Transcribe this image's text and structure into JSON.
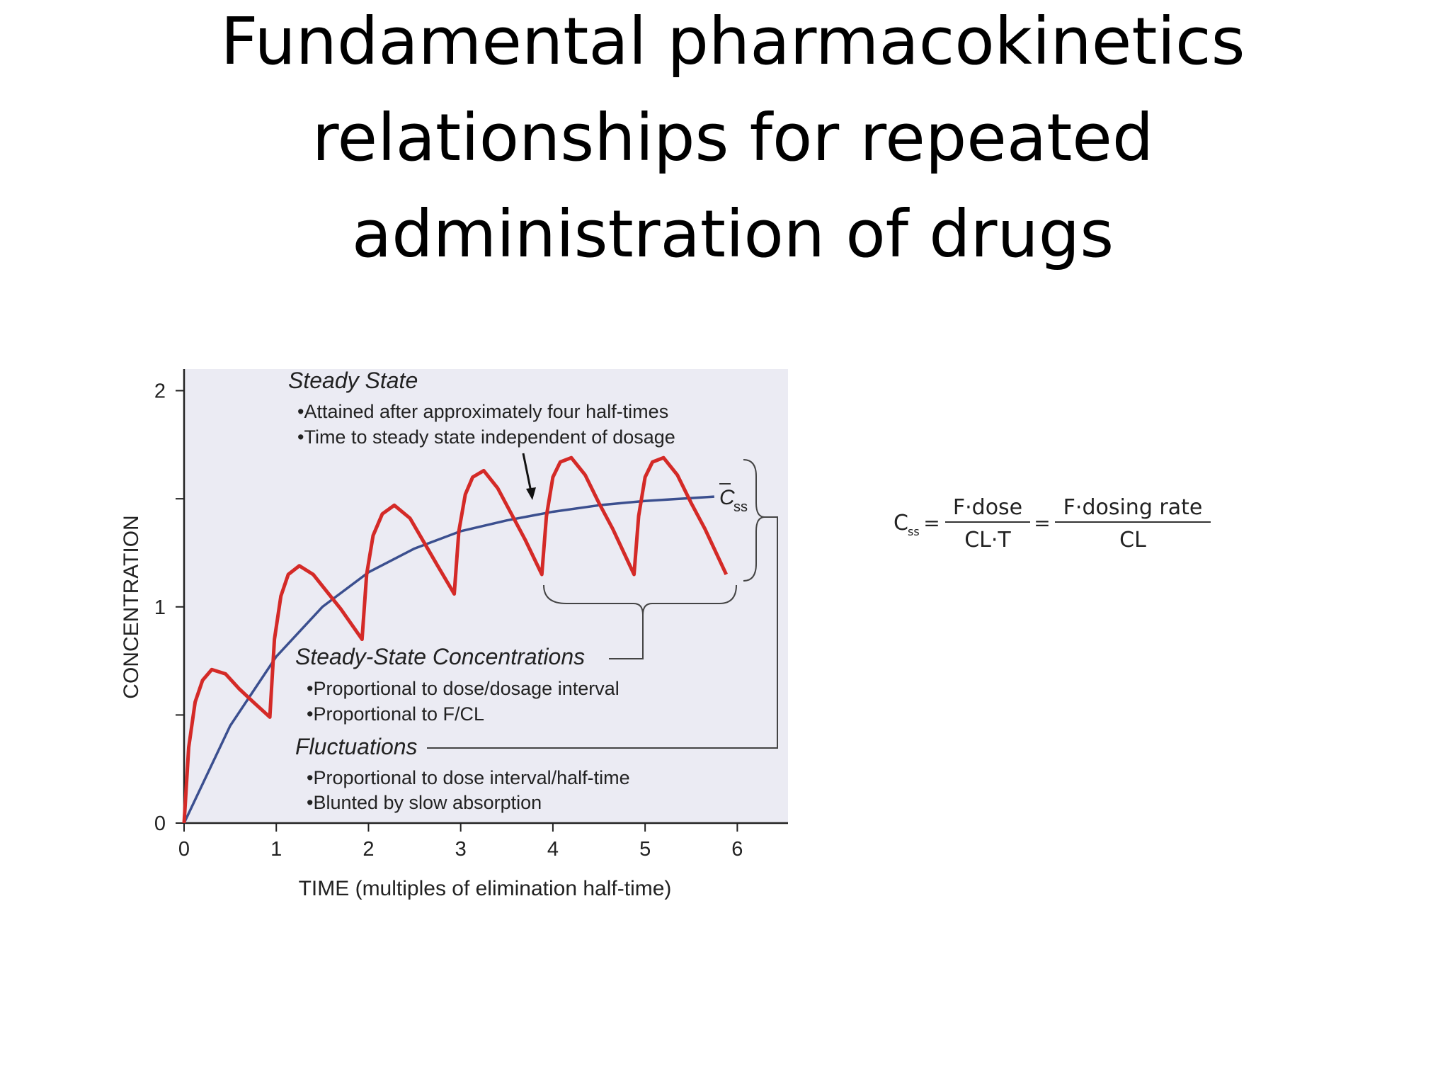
{
  "slide": {
    "title_lines": [
      "Fundamental pharmacokinetics",
      "relationships for repeated",
      "administration of drugs"
    ]
  },
  "chart_data": {
    "type": "line",
    "xlabel": "TIME (multiples of elimination half-time)",
    "ylabel": "CONCENTRATION",
    "xlim": [
      0,
      6.55
    ],
    "ylim": [
      0,
      2.1
    ],
    "xticks": [
      0,
      1,
      2,
      3,
      4,
      5,
      6
    ],
    "yticks": [
      0,
      1,
      2
    ],
    "y_minor_ticks": [
      0.5,
      1.5
    ],
    "series": [
      {
        "color": "#d42a27",
        "x": [
          0,
          0.05,
          0.12,
          0.2,
          0.3,
          0.45,
          0.6,
          0.75,
          0.93,
          0.98,
          1.05,
          1.13,
          1.25,
          1.4,
          1.55,
          1.7,
          1.93,
          1.98,
          2.05,
          2.15,
          2.28,
          2.45,
          2.6,
          2.75,
          2.93,
          2.98,
          3.05,
          3.13,
          3.25,
          3.4,
          3.55,
          3.7,
          3.88,
          3.93,
          4.0,
          4.08,
          4.2,
          4.35,
          4.5,
          4.65,
          4.88,
          4.93,
          5.0,
          5.08,
          5.2,
          5.35,
          5.5,
          5.65,
          5.88
        ],
        "values": [
          0,
          0.35,
          0.56,
          0.66,
          0.71,
          0.69,
          0.62,
          0.56,
          0.49,
          0.85,
          1.05,
          1.15,
          1.19,
          1.15,
          1.07,
          0.99,
          0.85,
          1.15,
          1.33,
          1.43,
          1.47,
          1.41,
          1.3,
          1.19,
          1.06,
          1.35,
          1.52,
          1.6,
          1.63,
          1.55,
          1.43,
          1.31,
          1.15,
          1.42,
          1.6,
          1.67,
          1.69,
          1.61,
          1.48,
          1.36,
          1.15,
          1.42,
          1.6,
          1.67,
          1.69,
          1.61,
          1.48,
          1.36,
          1.15
        ]
      },
      {
        "color": "#3b4f8f",
        "x": [
          0,
          0.5,
          1,
          1.5,
          2,
          2.5,
          3,
          3.5,
          4,
          4.5,
          5,
          5.75
        ],
        "values": [
          0,
          0.45,
          0.77,
          1.0,
          1.16,
          1.27,
          1.35,
          1.4,
          1.44,
          1.47,
          1.49,
          1.51
        ]
      }
    ],
    "annotations": [
      "Steady State",
      "•Attained after approximately four half-times",
      "•Time to steady state independent of dosage",
      "C",
      "ss",
      "Steady-State Concentrations",
      "•Proportional to dose/dosage interval",
      "•Proportional to F/CL",
      "Fluctuations",
      "•Proportional to dose interval/half-time",
      "•Blunted by slow absorption"
    ]
  },
  "formula": {
    "lhs": "C",
    "lhs_sub": "ss",
    "equals": "=",
    "num1": "F·dose",
    "den1": "CL·T",
    "num2": "F·dosing rate",
    "den2": "CL"
  }
}
